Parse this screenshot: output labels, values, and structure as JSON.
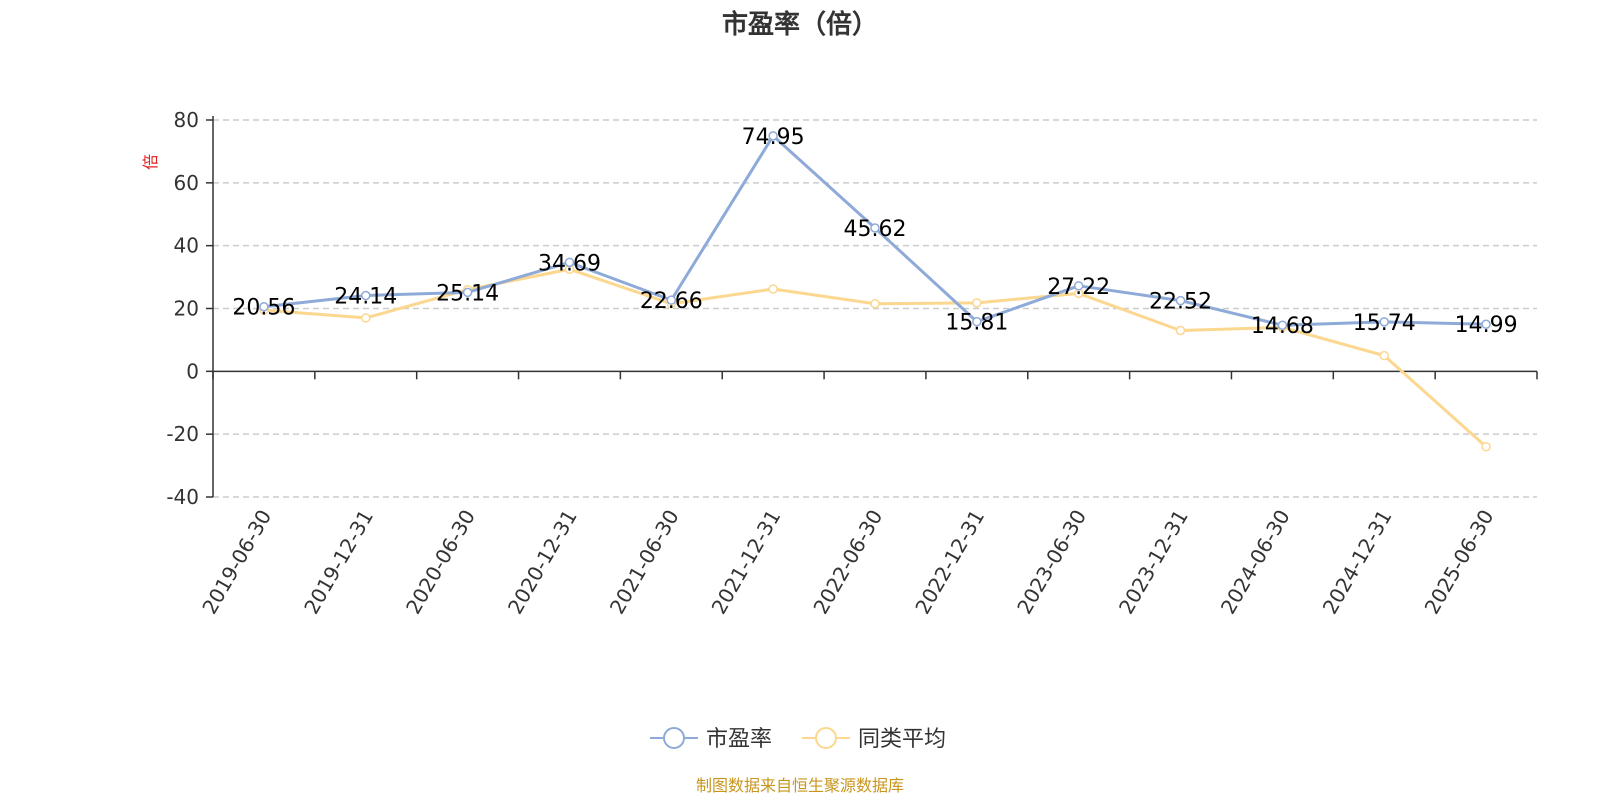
{
  "chart_data": {
    "type": "line",
    "title": "市盈率（倍）",
    "ylabel": "倍",
    "xlabel": "",
    "categories": [
      "2019-06-30",
      "2019-12-31",
      "2020-06-30",
      "2020-12-31",
      "2021-06-30",
      "2021-12-31",
      "2022-06-30",
      "2022-12-31",
      "2023-06-30",
      "2023-12-31",
      "2024-06-30",
      "2024-12-31",
      "2025-06-30"
    ],
    "ylim": [
      -40,
      80
    ],
    "yticks": [
      80,
      60,
      40,
      20,
      0,
      -20,
      -40
    ],
    "grid": true,
    "legend_position": "bottom",
    "series": [
      {
        "name": "市盈率",
        "color": "#8eaad8",
        "values": [
          20.56,
          24.14,
          25.14,
          34.69,
          22.66,
          74.95,
          45.62,
          15.81,
          27.22,
          22.52,
          14.68,
          15.74,
          14.99
        ],
        "labels": [
          "20.56",
          "24.14",
          "25.14",
          "34.69",
          "22.66",
          "74.95",
          "45.62",
          "15.81",
          "27.22",
          "22.52",
          "14.68",
          "15.74",
          "14.99"
        ]
      },
      {
        "name": "同类平均",
        "color": "#fbd78f",
        "values": [
          19.5,
          17.0,
          26.0,
          32.5,
          21.5,
          26.2,
          21.5,
          21.8,
          24.8,
          13.0,
          14.0,
          5.0,
          -24.0
        ]
      }
    ],
    "source_note": "制图数据来自恒生聚源数据库",
    "source_color": "#c8961e",
    "ylabel_color": "#e02020"
  }
}
